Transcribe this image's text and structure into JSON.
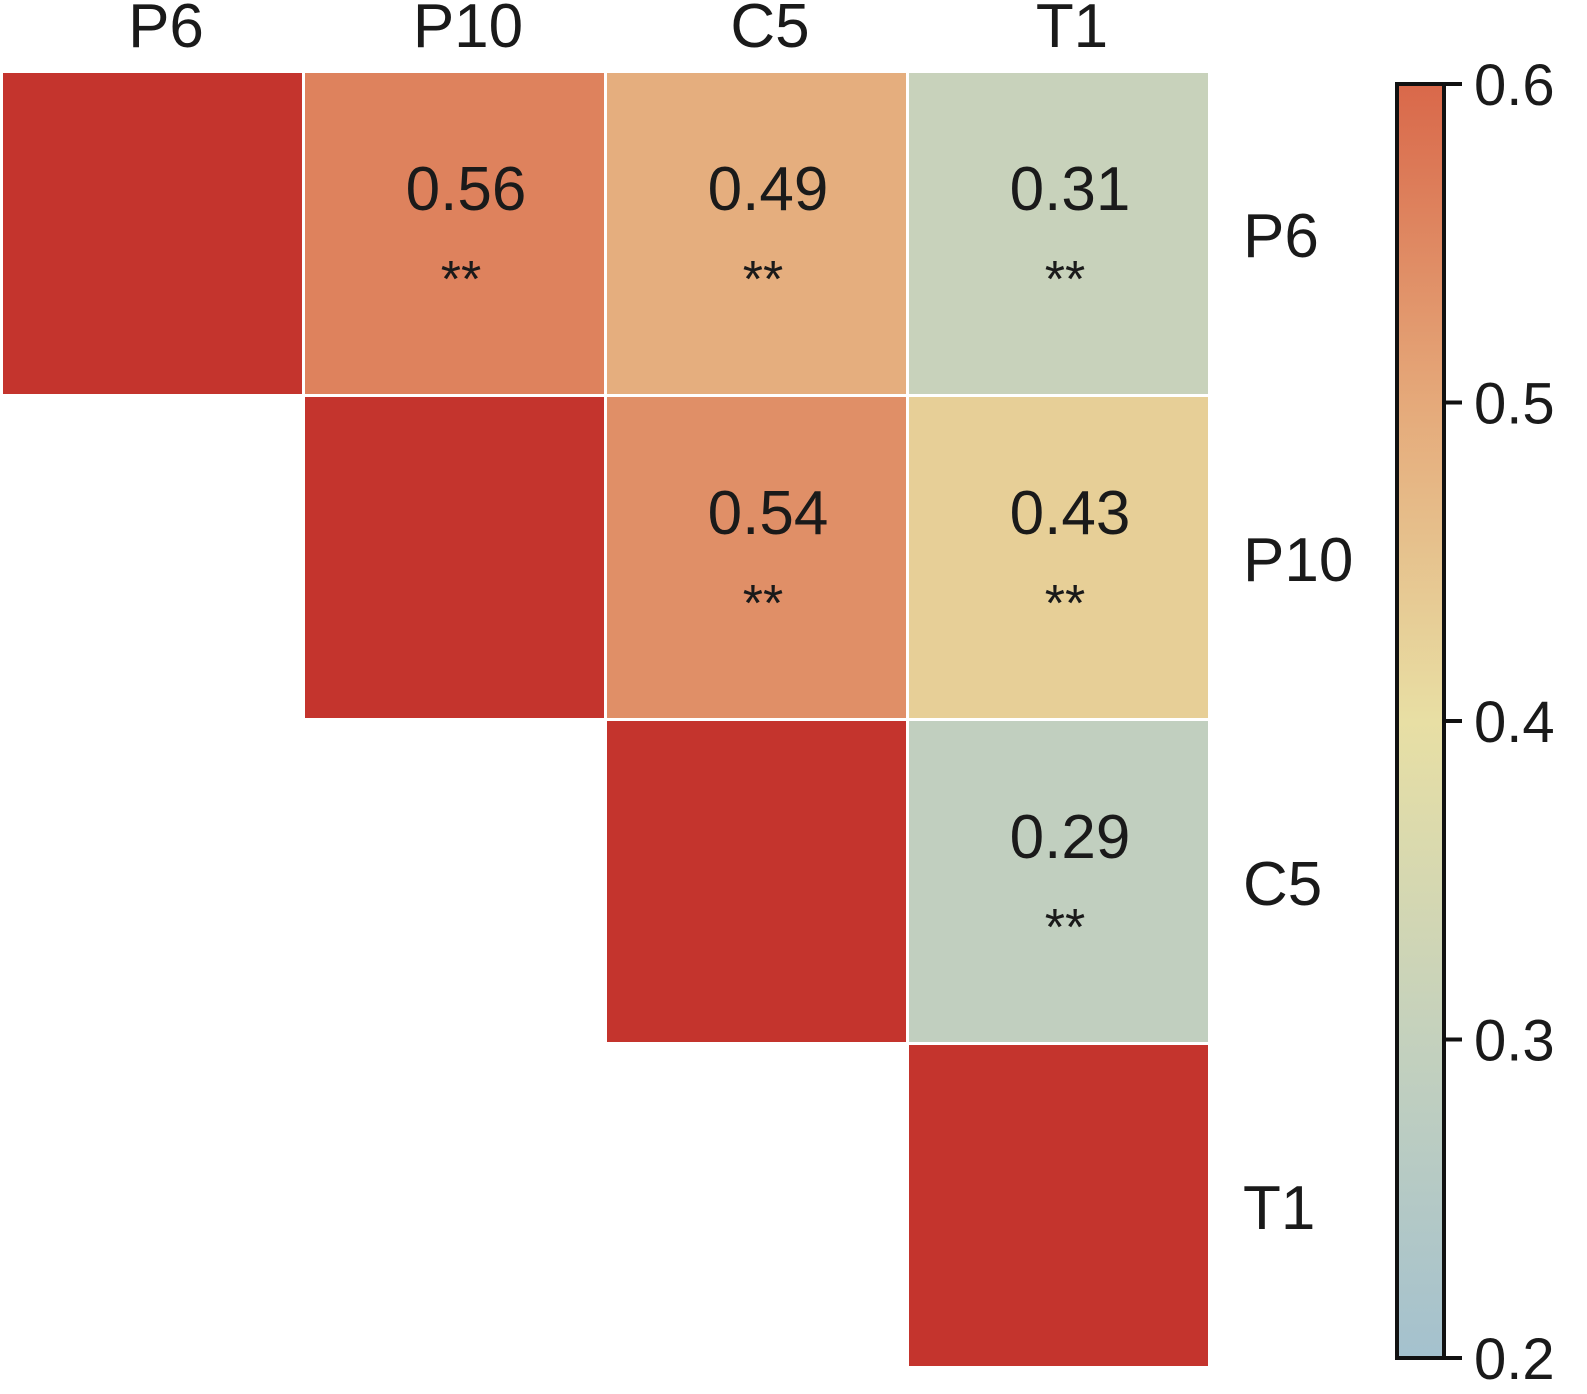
{
  "chart_data": {
    "type": "heatmap",
    "title": "",
    "variables": [
      "P6",
      "P10",
      "C5",
      "T1"
    ],
    "triangle": "upper",
    "cells": [
      {
        "row": "P6",
        "col": "P6",
        "value": 1,
        "label": "",
        "sig": ""
      },
      {
        "row": "P6",
        "col": "P10",
        "value": 0.56,
        "label": "0.56",
        "sig": "**"
      },
      {
        "row": "P6",
        "col": "C5",
        "value": 0.49,
        "label": "0.49",
        "sig": "**"
      },
      {
        "row": "P6",
        "col": "T1",
        "value": 0.31,
        "label": "0.31",
        "sig": "**"
      },
      {
        "row": "P10",
        "col": "P10",
        "value": 1,
        "label": "",
        "sig": ""
      },
      {
        "row": "P10",
        "col": "C5",
        "value": 0.54,
        "label": "0.54",
        "sig": "**"
      },
      {
        "row": "P10",
        "col": "T1",
        "value": 0.43,
        "label": "0.43",
        "sig": "**"
      },
      {
        "row": "C5",
        "col": "C5",
        "value": 1,
        "label": "",
        "sig": ""
      },
      {
        "row": "C5",
        "col": "T1",
        "value": 0.29,
        "label": "0.29",
        "sig": "**"
      },
      {
        "row": "T1",
        "col": "T1",
        "value": 1,
        "label": "",
        "sig": ""
      }
    ],
    "colorbar": {
      "range": [
        0.2,
        0.6
      ],
      "ticks": [
        "0.2",
        "0.3",
        "0.4",
        "0.5",
        "0.6"
      ],
      "stops": [
        {
          "value": 0.2,
          "color": "#a4c1ce"
        },
        {
          "value": 0.3,
          "color": "#c4d1bd"
        },
        {
          "value": 0.4,
          "color": "#e8dfa4"
        },
        {
          "value": 0.5,
          "color": "#e5a97a"
        },
        {
          "value": 0.6,
          "color": "#d9684a"
        }
      ],
      "above_range_color": "#c4342d"
    },
    "column_labels_position": "top",
    "row_labels_position": "right",
    "colorbar_position": "right"
  }
}
